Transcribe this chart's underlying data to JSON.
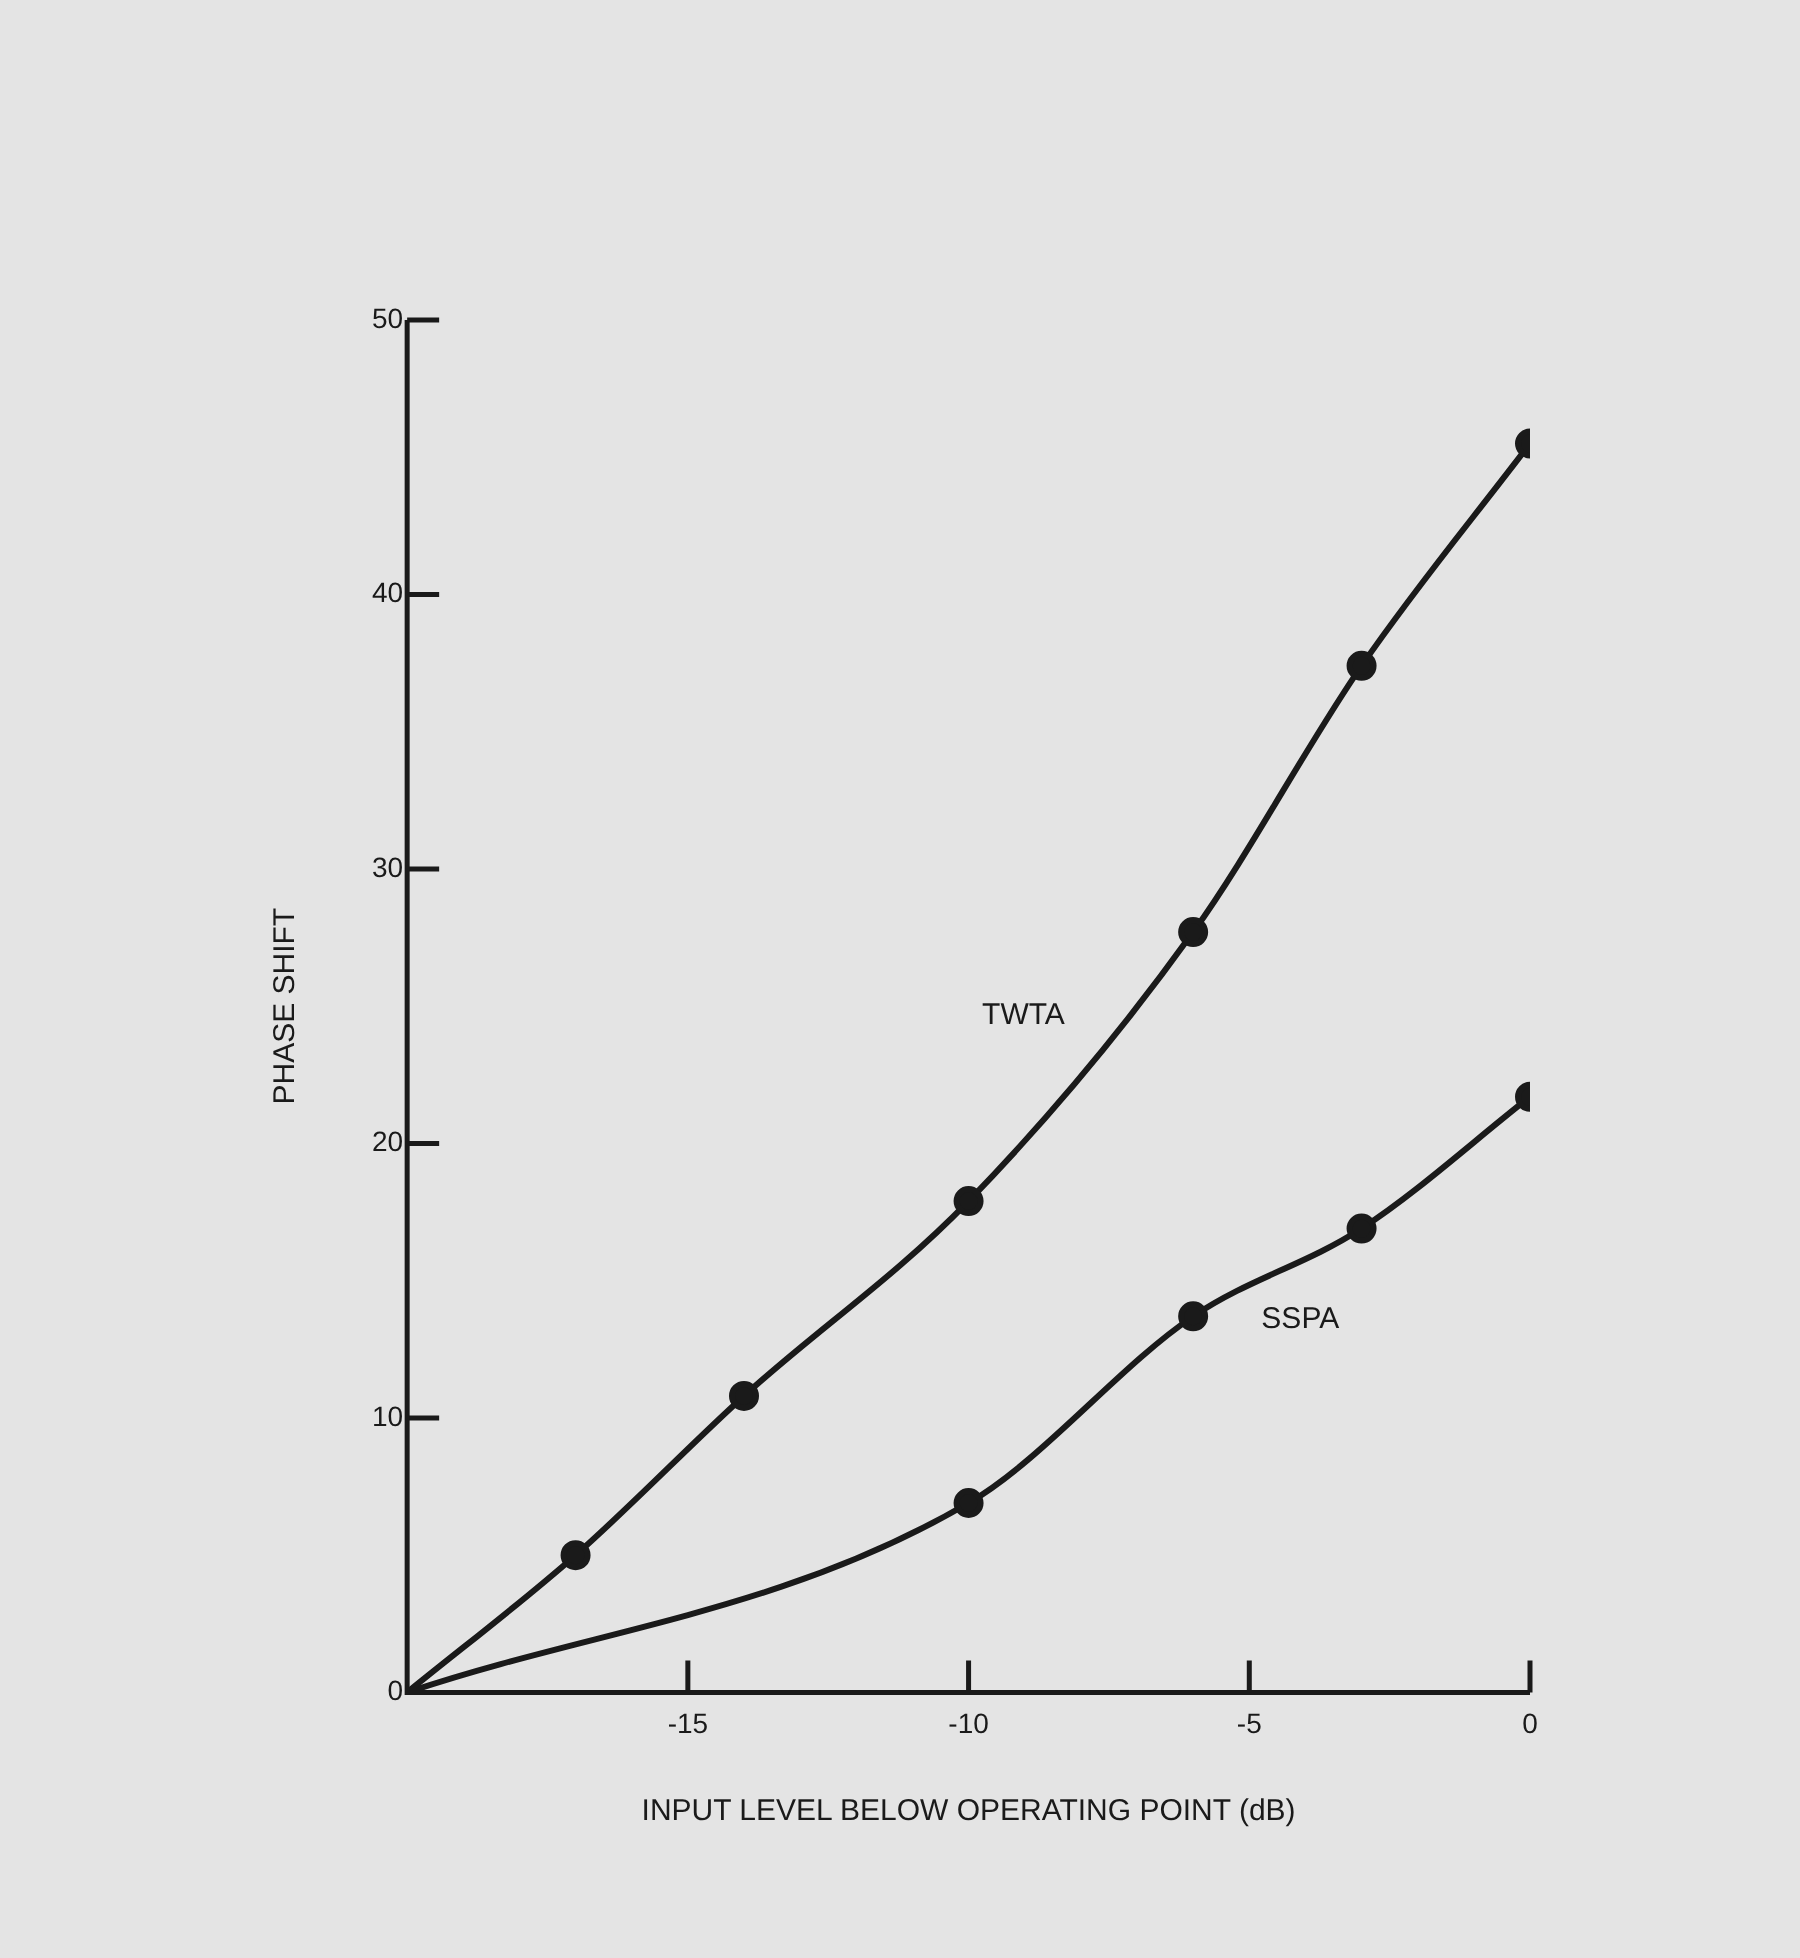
{
  "chart_data": {
    "type": "line",
    "xlabel": "INPUT LEVEL BELOW OPERATING POINT (dB)",
    "ylabel": "PHASE SHIFT",
    "xlim": [
      -20,
      0
    ],
    "xticks": [
      {
        "value": -20,
        "label": null
      },
      -15,
      -10,
      -5,
      0
    ],
    "ylim": [
      0,
      50
    ],
    "yticks": [
      0,
      10,
      20,
      30,
      40,
      50
    ],
    "grid": false,
    "legend": false,
    "marker": "circle",
    "line_style": "solid",
    "series": [
      {
        "name": "TWTA",
        "color": "#1a1a1a",
        "x": [
          -20,
          -17,
          -14,
          -10,
          -6,
          -3,
          0
        ],
        "values": [
          0,
          5,
          10.8,
          17.9,
          27.7,
          37.4,
          45.5
        ]
      },
      {
        "name": "SSPA",
        "color": "#1a1a1a",
        "x": [
          -20,
          -10,
          -6,
          -3,
          0
        ],
        "values": [
          0,
          6.9,
          13.7,
          16.9,
          21.7
        ]
      }
    ]
  }
}
